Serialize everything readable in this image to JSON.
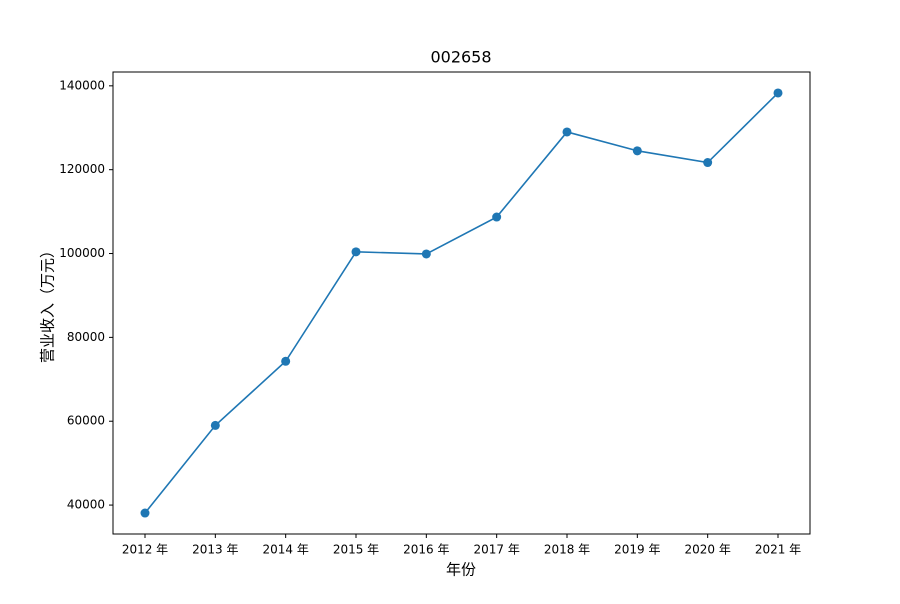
{
  "chart_data": {
    "type": "line",
    "title": "002658",
    "x_label": "年份",
    "y_label": "营业收入（万元）",
    "categories": [
      "2012 年",
      "2013 年",
      "2014 年",
      "2015 年",
      "2016 年",
      "2017 年",
      "2018 年",
      "2019 年",
      "2020 年",
      "2021 年"
    ],
    "series": [
      {
        "name": "营业收入",
        "color": "#1f77b4",
        "values": [
          38100,
          59000,
          74300,
          100400,
          99900,
          108700,
          129000,
          124500,
          121700,
          138300
        ]
      }
    ],
    "ylim": [
      33100,
      143300
    ],
    "yticks": [
      40000,
      60000,
      80000,
      100000,
      120000,
      140000
    ],
    "grid": false
  }
}
